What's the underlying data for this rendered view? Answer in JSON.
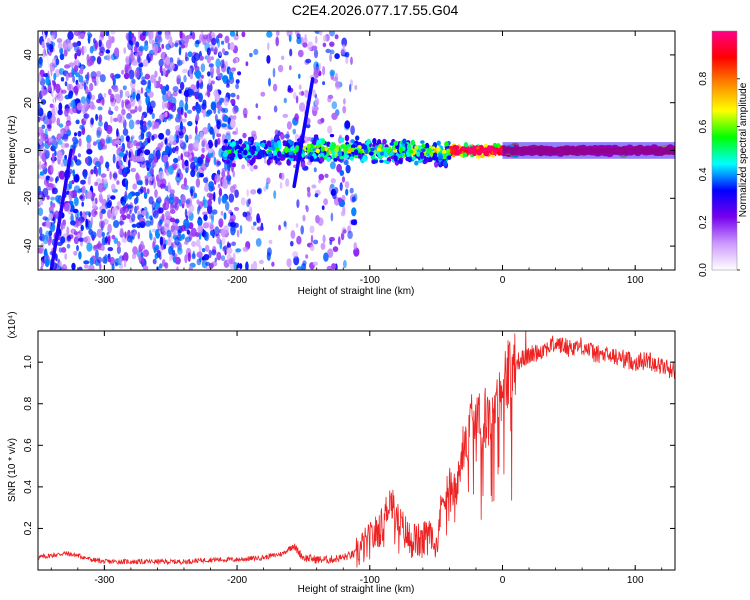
{
  "title": "C2E4.2026.077.17.55.G04",
  "chart_data": [
    {
      "type": "heatmap",
      "xlabel": "Height of straight line (km)",
      "ylabel": "Frequency (Hz)",
      "xlim": [
        -350,
        130
      ],
      "ylim": [
        -50,
        50
      ],
      "xticks": [
        -300,
        -200,
        -100,
        0,
        100
      ],
      "yticks": [
        -40,
        -20,
        0,
        20,
        40
      ],
      "colorbar": {
        "label": "Normalized spectral amplitude",
        "range": [
          0,
          1
        ],
        "ticks": [
          "0.0",
          "0.2",
          "0.4",
          "0.6",
          "0.8"
        ],
        "tick_values": [
          0,
          0.2,
          0.4,
          0.6,
          0.8
        ],
        "colors": [
          "#ffffff",
          "#cc99ff",
          "#7700ee",
          "#0000ff",
          "#00ffff",
          "#00ff00",
          "#ffff00",
          "#ff8800",
          "#ff0000",
          "#ff0088"
        ]
      },
      "features": {
        "noise_region_x": [
          -350,
          -120
        ],
        "band_start_x": -210,
        "band_end_x": 130,
        "band_center_hz": 0,
        "streak_1": {
          "x": [
            -340,
            -325
          ],
          "y": [
            -50,
            0
          ]
        },
        "streak_2": {
          "x": [
            -157,
            -143
          ],
          "y": [
            -15,
            30
          ]
        },
        "steep_line": {
          "x": [
            -346,
            -336
          ],
          "y": [
            50,
            15
          ]
        }
      }
    },
    {
      "type": "line",
      "xlabel": "Height of straight line (km)",
      "ylabel": "SNR (10 * v/v)",
      "exponent_label": "(x10⁴)",
      "xlim": [
        -350,
        130
      ],
      "ylim": [
        0,
        1.15
      ],
      "xticks": [
        -300,
        -200,
        -100,
        0,
        100
      ],
      "yticks": [
        0.2,
        0.4,
        0.6,
        0.8,
        1.0
      ],
      "ytick_labels": [
        "0.2",
        "0.4",
        "0.6",
        "0.8",
        "1.0"
      ],
      "series": [
        {
          "name": "SNR",
          "color": "#ee2222",
          "x": [
            -350,
            -340,
            -330,
            -320,
            -310,
            -300,
            -280,
            -260,
            -240,
            -220,
            -200,
            -180,
            -165,
            -158,
            -150,
            -140,
            -130,
            -120,
            -110,
            -100,
            -90,
            -85,
            -80,
            -75,
            -70,
            -60,
            -55,
            -50,
            -45,
            -40,
            -35,
            -30,
            -25,
            -20,
            -15,
            -10,
            -5,
            0,
            5,
            10,
            20,
            30,
            40,
            50,
            60,
            70,
            80,
            90,
            100,
            110,
            120,
            130
          ],
          "y": [
            0.06,
            0.07,
            0.08,
            0.07,
            0.05,
            0.04,
            0.04,
            0.04,
            0.04,
            0.05,
            0.05,
            0.06,
            0.08,
            0.12,
            0.06,
            0.05,
            0.05,
            0.06,
            0.08,
            0.14,
            0.22,
            0.35,
            0.25,
            0.2,
            0.15,
            0.13,
            0.22,
            0.12,
            0.35,
            0.42,
            0.38,
            0.55,
            0.7,
            0.68,
            0.72,
            0.75,
            0.82,
            0.88,
            0.95,
            1.0,
            1.03,
            1.06,
            1.09,
            1.07,
            1.08,
            1.04,
            1.03,
            1.02,
            1.0,
            1.01,
            0.98,
            0.96
          ]
        }
      ]
    }
  ]
}
